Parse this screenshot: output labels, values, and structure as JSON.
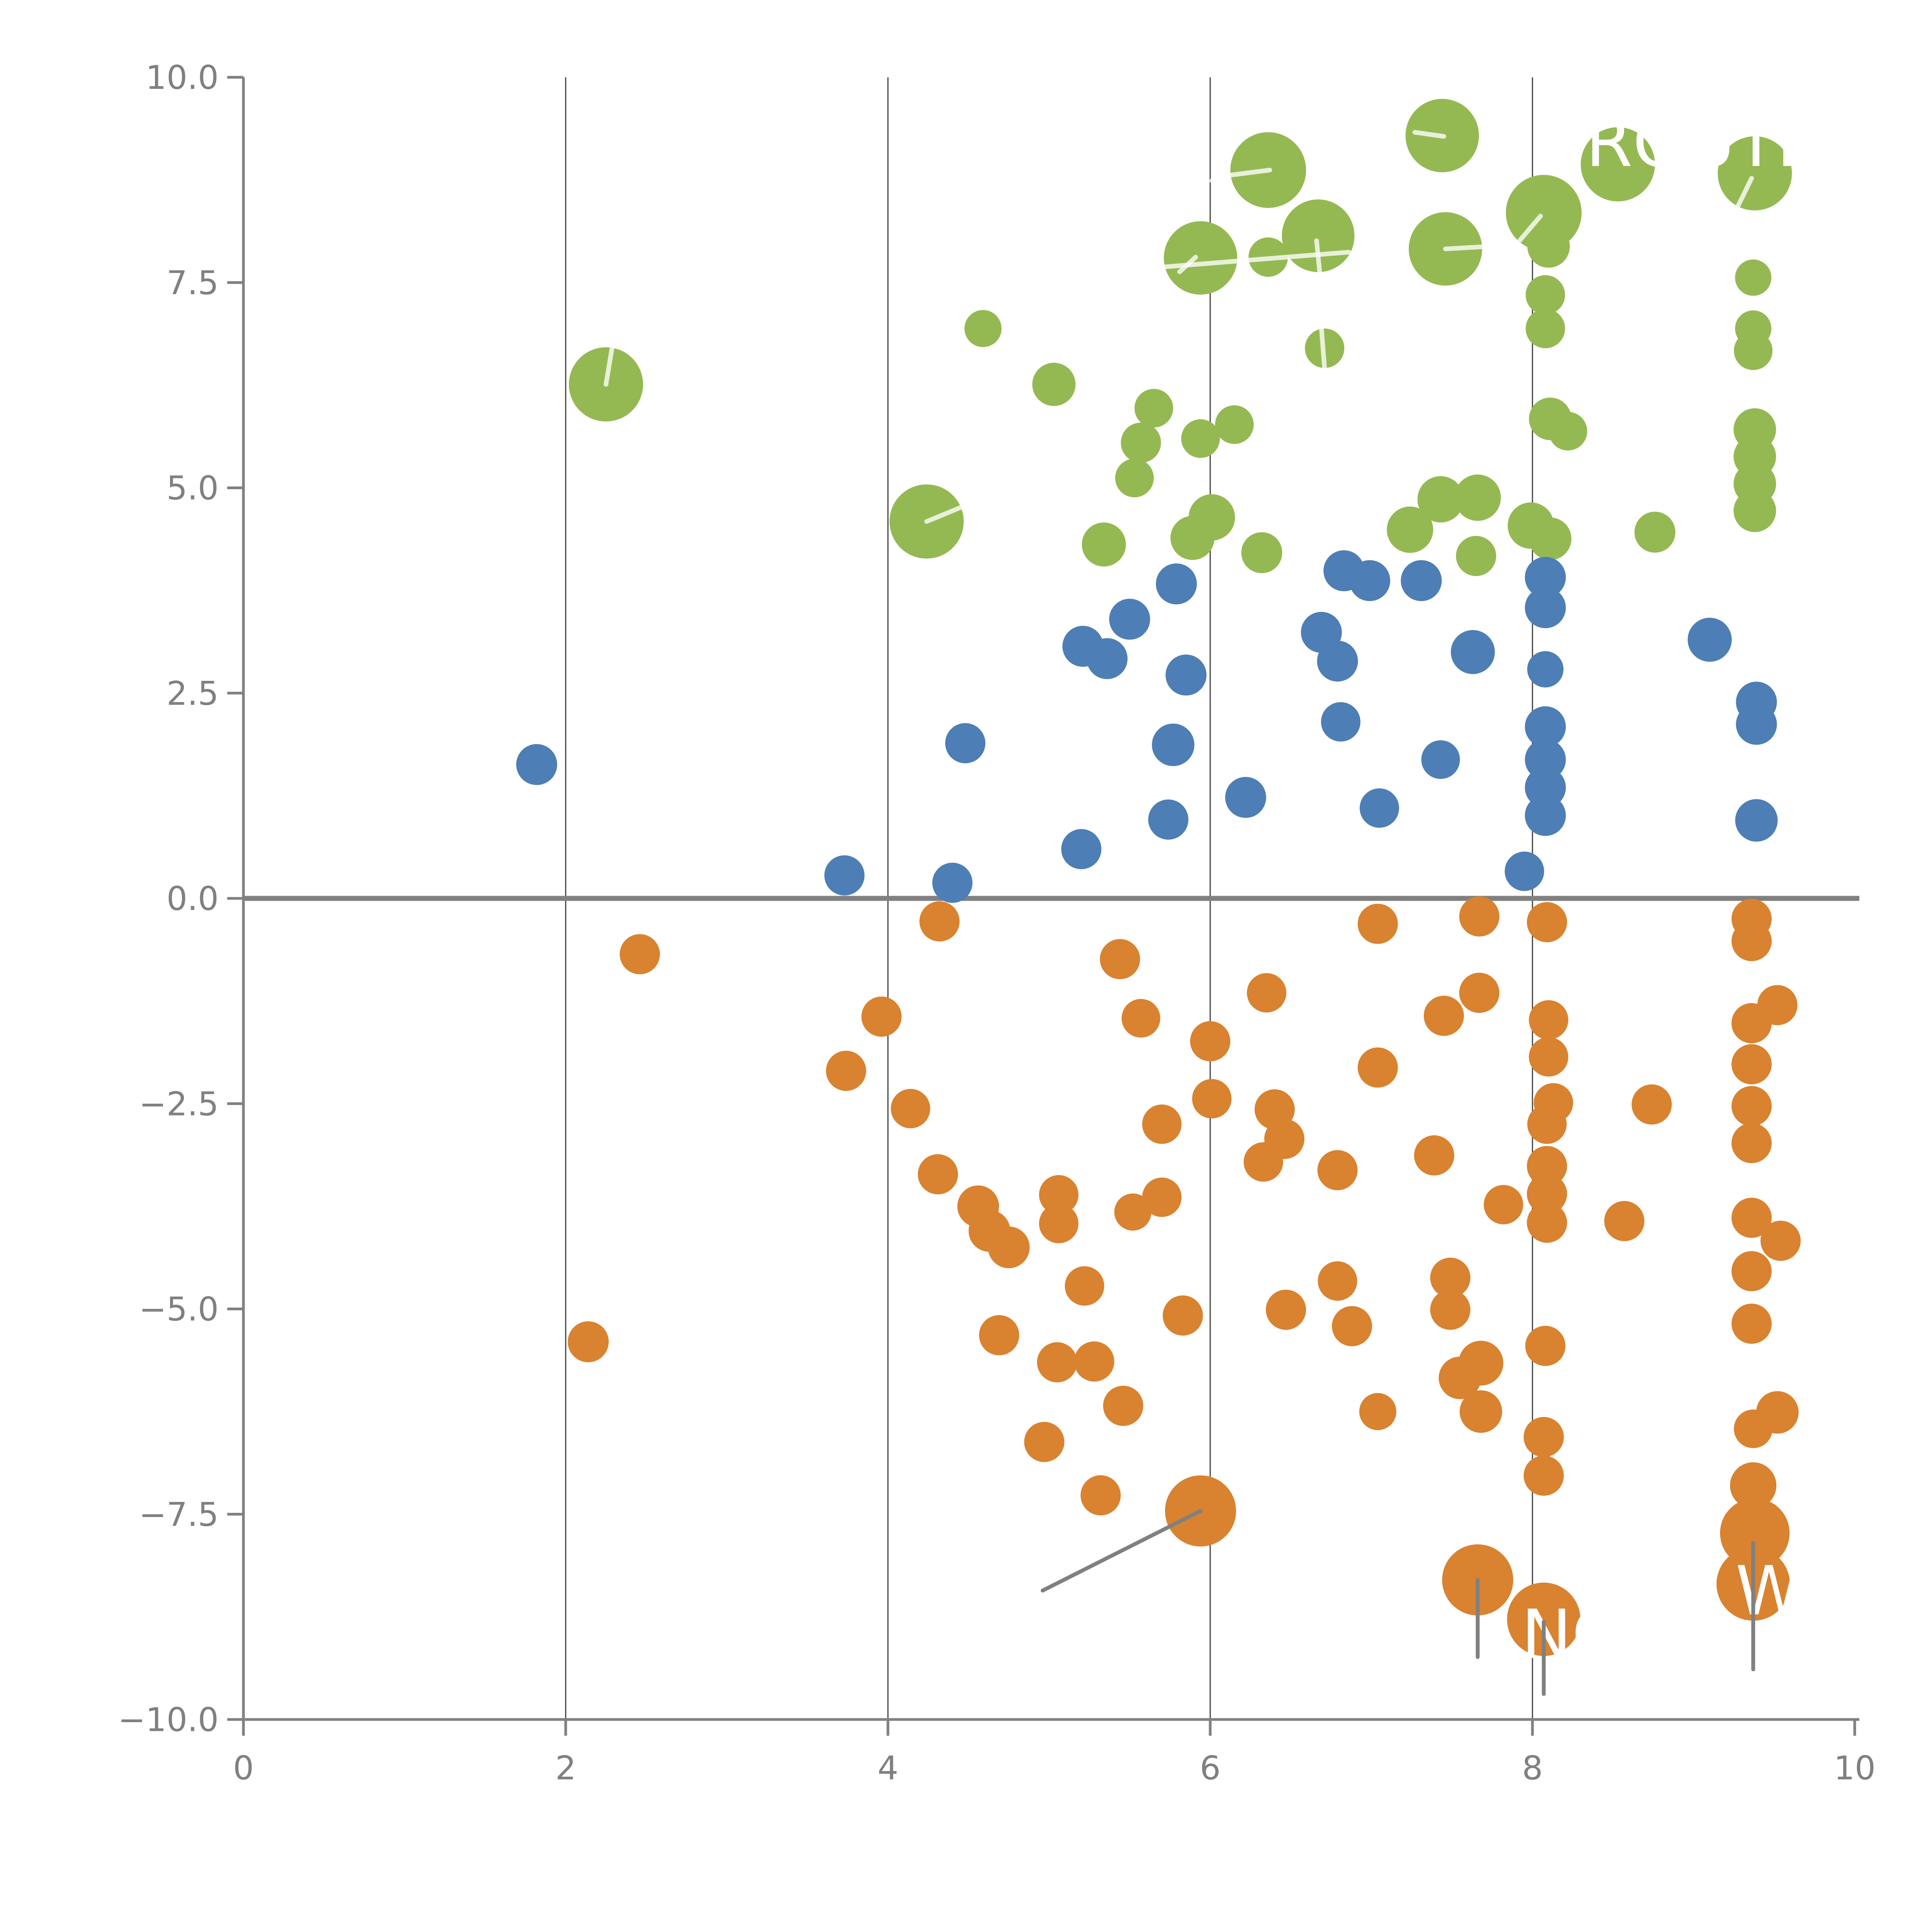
{
  "chart_data": {
    "type": "scatter",
    "title": "",
    "xlabel": "",
    "ylabel": "",
    "xlim": [
      0,
      10
    ],
    "ylim": [
      -10,
      10
    ],
    "grid": "vertical-only",
    "legend": "none",
    "x_ticks": [
      {
        "v": 0,
        "label": "0"
      },
      {
        "v": 2,
        "label": "2"
      },
      {
        "v": 4,
        "label": "4"
      },
      {
        "v": 6,
        "label": "6"
      },
      {
        "v": 8,
        "label": "8"
      },
      {
        "v": 10,
        "label": "10"
      }
    ],
    "y_ticks": [
      {
        "v": 10,
        "label": "10.0"
      },
      {
        "v": 7.5,
        "label": "7.5"
      },
      {
        "v": 5,
        "label": "5.0"
      },
      {
        "v": 2.5,
        "label": "2.5"
      },
      {
        "v": 0,
        "label": "0.0"
      },
      {
        "v": -2.5,
        "label": "−2.5"
      },
      {
        "v": -5,
        "label": "−5.0"
      },
      {
        "v": -7.5,
        "label": "−7.5"
      },
      {
        "v": -10,
        "label": "−10.0"
      }
    ],
    "gridlines_x": [
      2,
      4,
      6,
      8
    ],
    "zero_line_y": 0,
    "colors": {
      "green": "#94b952",
      "blue": "#4d7eb5",
      "orange": "#d9822f",
      "axis": "#808080",
      "tick_label": "#808080",
      "gridline": "#3f3f3f",
      "zero_line": "#808080",
      "gray_leader": "#808080",
      "white_leader": "rgba(255,255,255,0.78)",
      "annotation_text": "#ffffff"
    },
    "series": [
      {
        "name": "green",
        "color": "#94b952",
        "points": [
          [
            2.25,
            6.26,
            96
          ],
          [
            4.24,
            4.59,
            96
          ],
          [
            4.59,
            6.94,
            48
          ],
          [
            5.03,
            6.26,
            56
          ],
          [
            5.65,
            5.97,
            50
          ],
          [
            5.57,
            5.55,
            52
          ],
          [
            5.53,
            5.12,
            50
          ],
          [
            5.94,
            5.6,
            50
          ],
          [
            6.15,
            5.77,
            50
          ],
          [
            5.94,
            7.8,
            95
          ],
          [
            6.36,
            8.87,
            98
          ],
          [
            6.67,
            8.07,
            94
          ],
          [
            6.36,
            7.81,
            51
          ],
          [
            7.44,
            9.29,
            95
          ],
          [
            7.46,
            7.91,
            95
          ],
          [
            6.71,
            6.7,
            51
          ],
          [
            8.53,
            8.94,
            96
          ],
          [
            9.38,
            8.83,
            96
          ],
          [
            8.07,
            8.35,
            98
          ],
          [
            8.1,
            7.94,
            55
          ],
          [
            8.08,
            7.35,
            51
          ],
          [
            8.08,
            6.94,
            51
          ],
          [
            9.37,
            7.56,
            47
          ],
          [
            9.37,
            6.94,
            47
          ],
          [
            9.37,
            6.67,
            50
          ],
          [
            8.11,
            5.84,
            55
          ],
          [
            8.22,
            5.69,
            50
          ],
          [
            9.38,
            5.71,
            55
          ],
          [
            9.38,
            5.38,
            55
          ],
          [
            9.38,
            5.05,
            55
          ],
          [
            9.38,
            4.72,
            55
          ],
          [
            5.34,
            4.31,
            57
          ],
          [
            6.01,
            4.64,
            60
          ],
          [
            5.89,
            4.39,
            57
          ],
          [
            6.32,
            4.21,
            53
          ],
          [
            7.43,
            4.86,
            60
          ],
          [
            7.66,
            4.88,
            60
          ],
          [
            7.24,
            4.49,
            60
          ],
          [
            7.65,
            4.17,
            52
          ],
          [
            7.99,
            4.54,
            60
          ],
          [
            8.11,
            4.38,
            55
          ],
          [
            8.76,
            4.46,
            53
          ]
        ]
      },
      {
        "name": "blue",
        "color": "#4d7eb5",
        "points": [
          [
            1.82,
            1.63,
            53
          ],
          [
            3.73,
            0.28,
            52
          ],
          [
            4.4,
            0.19,
            52
          ],
          [
            4.48,
            1.89,
            52
          ],
          [
            5.2,
            0.6,
            52
          ],
          [
            5.74,
            0.96,
            52
          ],
          [
            5.79,
            3.83,
            53
          ],
          [
            5.5,
            3.4,
            53
          ],
          [
            5.21,
            3.07,
            53
          ],
          [
            5.36,
            2.92,
            53
          ],
          [
            5.85,
            2.72,
            53
          ],
          [
            5.77,
            1.87,
            55
          ],
          [
            6.22,
            1.23,
            53
          ],
          [
            6.83,
            3.99,
            53
          ],
          [
            6.99,
            3.87,
            53
          ],
          [
            6.69,
            3.24,
            53
          ],
          [
            6.79,
            2.89,
            53
          ],
          [
            6.81,
            2.15,
            51
          ],
          [
            7.05,
            1.1,
            51
          ],
          [
            7.43,
            1.69,
            50
          ],
          [
            7.31,
            3.87,
            53
          ],
          [
            7.63,
            3.0,
            57
          ],
          [
            7.95,
            0.33,
            51
          ],
          [
            8.08,
            3.91,
            53
          ],
          [
            8.08,
            3.54,
            53
          ],
          [
            8.08,
            2.79,
            47
          ],
          [
            8.08,
            2.09,
            53
          ],
          [
            8.08,
            1.69,
            53
          ],
          [
            8.08,
            1.35,
            53
          ],
          [
            8.08,
            1.01,
            53
          ],
          [
            9.1,
            3.15,
            57
          ],
          [
            9.39,
            2.39,
            53
          ],
          [
            9.39,
            2.12,
            53
          ],
          [
            9.39,
            0.95,
            55
          ]
        ]
      },
      {
        "name": "orange",
        "color": "#d9822f",
        "points": [
          [
            2.46,
            -0.68,
            52
          ],
          [
            2.14,
            -5.4,
            53
          ],
          [
            3.74,
            -2.1,
            52
          ],
          [
            3.96,
            -1.44,
            52
          ],
          [
            4.14,
            -2.56,
            51
          ],
          [
            4.31,
            -3.36,
            52
          ],
          [
            4.32,
            -0.28,
            52
          ],
          [
            4.56,
            -3.75,
            54
          ],
          [
            4.63,
            -4.05,
            54
          ],
          [
            4.75,
            -4.25,
            54
          ],
          [
            4.69,
            -5.32,
            52
          ],
          [
            4.97,
            -6.62,
            52
          ],
          [
            5.05,
            -5.65,
            52
          ],
          [
            5.28,
            -5.64,
            52
          ],
          [
            5.32,
            -7.27,
            52
          ],
          [
            5.44,
            -0.74,
            52
          ],
          [
            5.46,
            -6.18,
            52
          ],
          [
            5.57,
            -1.46,
            50
          ],
          [
            5.7,
            -2.75,
            51
          ],
          [
            5.83,
            -5.08,
            52
          ],
          [
            5.94,
            -7.46,
            92
          ],
          [
            6.0,
            -1.74,
            52
          ],
          [
            6.01,
            -2.44,
            51
          ],
          [
            5.06,
            -3.61,
            51
          ],
          [
            5.06,
            -3.96,
            51
          ],
          [
            5.52,
            -3.82,
            48
          ],
          [
            5.7,
            -3.64,
            51
          ],
          [
            5.22,
            -4.72,
            51
          ],
          [
            6.33,
            -3.21,
            51
          ],
          [
            6.35,
            -1.15,
            51
          ],
          [
            6.4,
            -2.57,
            52
          ],
          [
            6.46,
            -2.93,
            52
          ],
          [
            6.47,
            -5.01,
            52
          ],
          [
            6.79,
            -3.31,
            52
          ],
          [
            6.79,
            -4.66,
            51
          ],
          [
            6.88,
            -5.21,
            52
          ],
          [
            7.04,
            -0.31,
            52
          ],
          [
            7.04,
            -2.06,
            52
          ],
          [
            7.04,
            -6.25,
            48
          ],
          [
            7.39,
            -3.13,
            52
          ],
          [
            7.45,
            -1.43,
            52
          ],
          [
            7.49,
            -4.62,
            52
          ],
          [
            7.49,
            -5.01,
            52
          ],
          [
            7.55,
            -5.84,
            55
          ],
          [
            7.68,
            -5.66,
            58
          ],
          [
            7.68,
            -6.25,
            55
          ],
          [
            7.66,
            -8.3,
            92
          ],
          [
            7.67,
            -0.22,
            52
          ],
          [
            7.67,
            -1.15,
            52
          ],
          [
            7.82,
            -3.73,
            51
          ],
          [
            8.07,
            -8.78,
            95
          ],
          [
            8.09,
            -0.29,
            52
          ],
          [
            8.1,
            -1.48,
            51
          ],
          [
            8.1,
            -1.93,
            51
          ],
          [
            8.13,
            -2.49,
            51
          ],
          [
            8.09,
            -2.75,
            51
          ],
          [
            8.09,
            -3.26,
            52
          ],
          [
            8.09,
            -3.6,
            52
          ],
          [
            8.09,
            -3.95,
            52
          ],
          [
            8.08,
            -5.45,
            52
          ],
          [
            8.07,
            -6.56,
            52
          ],
          [
            8.07,
            -7.03,
            52
          ],
          [
            8.57,
            -3.93,
            52
          ],
          [
            8.74,
            -2.51,
            52
          ],
          [
            9.36,
            -0.25,
            52
          ],
          [
            9.36,
            -0.52,
            52
          ],
          [
            9.52,
            -1.3,
            52
          ],
          [
            9.36,
            -1.52,
            52
          ],
          [
            9.36,
            -2.02,
            52
          ],
          [
            9.36,
            -2.53,
            52
          ],
          [
            9.36,
            -2.98,
            52
          ],
          [
            9.36,
            -3.89,
            52
          ],
          [
            9.54,
            -4.17,
            52
          ],
          [
            9.36,
            -4.54,
            52
          ],
          [
            9.36,
            -5.18,
            52
          ],
          [
            9.37,
            -6.46,
            50
          ],
          [
            9.52,
            -6.26,
            55
          ],
          [
            9.37,
            -7.15,
            60
          ],
          [
            9.38,
            -7.73,
            90
          ],
          [
            9.37,
            -8.35,
            95
          ]
        ]
      }
    ],
    "annotations": {
      "labels": [
        {
          "text": "ROUTE",
          "x": 8.33,
          "y": 8.92
        },
        {
          "text": "NODE",
          "x": 7.93,
          "y": -9.25
        },
        {
          "text": "WAY",
          "x": 9.26,
          "y": -8.72
        }
      ],
      "gray_leaders": [
        {
          "x1": 8.07,
          "y1": -8.81,
          "x2": 8.07,
          "y2": -9.69
        },
        {
          "x1": 9.37,
          "y1": -7.85,
          "x2": 9.37,
          "y2": -9.39
        },
        {
          "x1": 7.66,
          "y1": -8.3,
          "x2": 7.66,
          "y2": -9.24
        },
        {
          "x1": 5.94,
          "y1": -7.46,
          "x2": 4.96,
          "y2": -8.43
        }
      ],
      "white_leaders": [
        {
          "x1": 2.25,
          "y1": 6.26,
          "x2": 2.29,
          "y2": 6.73
        },
        {
          "x1": 4.24,
          "y1": 4.59,
          "x2": 4.45,
          "y2": 4.76
        },
        {
          "x1": 5.71,
          "y1": 7.69,
          "x2": 6.86,
          "y2": 7.87
        },
        {
          "x1": 5.81,
          "y1": 7.63,
          "x2": 5.91,
          "y2": 7.81
        },
        {
          "x1": 6.13,
          "y1": 8.81,
          "x2": 6.37,
          "y2": 8.87
        },
        {
          "x1": 6.66,
          "y1": 8.01,
          "x2": 6.68,
          "y2": 7.62
        },
        {
          "x1": 7.27,
          "y1": 9.33,
          "x2": 7.45,
          "y2": 9.28
        },
        {
          "x1": 7.46,
          "y1": 7.91,
          "x2": 7.73,
          "y2": 7.94
        },
        {
          "x1": 6.69,
          "y1": 6.95,
          "x2": 6.71,
          "y2": 6.45
        },
        {
          "x1": 8.05,
          "y1": 8.31,
          "x2": 7.92,
          "y2": 8.01
        },
        {
          "x1": 9.36,
          "y1": 8.77,
          "x2": 9.27,
          "y2": 8.41
        },
        {
          "x1": 4.22,
          "y1": 7.62,
          "x2": 4.43,
          "y2": 7.51
        },
        {
          "x1": 6.01,
          "y1": 8.74,
          "x2": 6.13,
          "y2": 8.65
        }
      ]
    }
  }
}
